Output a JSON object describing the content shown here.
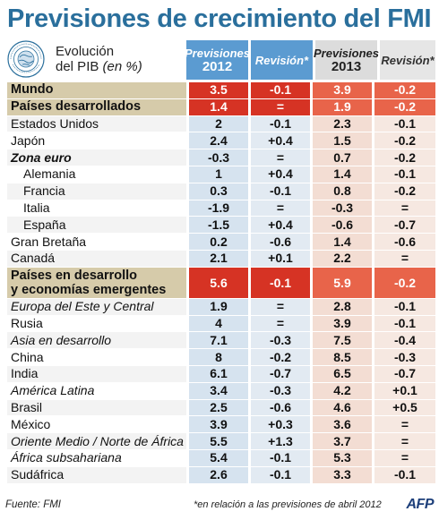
{
  "title": "Previsiones de crecimiento del FMI",
  "subtitle_line1": "Evolución",
  "subtitle_line2": "del PIB",
  "subtitle_unit": "(en %)",
  "logo_text": "INTERNATIONAL MONETARY FUND",
  "columns": {
    "prev2012_top": "Previsiones",
    "prev2012_year": "2012",
    "rev1": "Revisión*",
    "prev2013_top": "Previsiones",
    "prev2013_year": "2013",
    "rev2": "Revisión*"
  },
  "rows": [
    {
      "label": "Mundo",
      "p2012": "3.5",
      "r2012": "-0.1",
      "p2013": "3.9",
      "r2013": "-0.2"
    },
    {
      "label": "Países desarrollados",
      "p2012": "1.4",
      "r2012": "=",
      "p2013": "1.9",
      "r2013": "-0.2"
    },
    {
      "label": "Estados Unidos",
      "p2012": "2",
      "r2012": "-0.1",
      "p2013": "2.3",
      "r2013": "-0.1"
    },
    {
      "label": "Japón",
      "p2012": "2.4",
      "r2012": "+0.4",
      "p2013": "1.5",
      "r2013": "-0.2"
    },
    {
      "label": "Zona euro",
      "p2012": "-0.3",
      "r2012": "=",
      "p2013": "0.7",
      "r2013": "-0.2"
    },
    {
      "label": "Alemania",
      "p2012": "1",
      "r2012": "+0.4",
      "p2013": "1.4",
      "r2013": "-0.1"
    },
    {
      "label": "Francia",
      "p2012": "0.3",
      "r2012": "-0.1",
      "p2013": "0.8",
      "r2013": "-0.2"
    },
    {
      "label": "Italia",
      "p2012": "-1.9",
      "r2012": "=",
      "p2013": "-0.3",
      "r2013": "="
    },
    {
      "label": "España",
      "p2012": "-1.5",
      "r2012": "+0.4",
      "p2013": "-0.6",
      "r2013": "-0.7"
    },
    {
      "label": "Gran Bretaña",
      "p2012": "0.2",
      "r2012": "-0.6",
      "p2013": "1.4",
      "r2013": "-0.6"
    },
    {
      "label": "Canadá",
      "p2012": "2.1",
      "r2012": "+0.1",
      "p2013": "2.2",
      "r2013": "="
    },
    {
      "label1": "Países en desarrollo",
      "label2": "y economías emergentes",
      "p2012": "5.6",
      "r2012": "-0.1",
      "p2013": "5.9",
      "r2013": "-0.2"
    },
    {
      "label": "Europa del Este y Central",
      "p2012": "1.9",
      "r2012": "=",
      "p2013": "2.8",
      "r2013": "-0.1"
    },
    {
      "label": "Rusia",
      "p2012": "4",
      "r2012": "=",
      "p2013": "3.9",
      "r2013": "-0.1"
    },
    {
      "label": "Asia en desarrollo",
      "p2012": "7.1",
      "r2012": "-0.3",
      "p2013": "7.5",
      "r2013": "-0.4"
    },
    {
      "label": "China",
      "p2012": "8",
      "r2012": "-0.2",
      "p2013": "8.5",
      "r2013": "-0.3"
    },
    {
      "label": "India",
      "p2012": "6.1",
      "r2012": "-0.7",
      "p2013": "6.5",
      "r2013": "-0.7"
    },
    {
      "label": "América Latina",
      "p2012": "3.4",
      "r2012": "-0.3",
      "p2013": "4.2",
      "r2013": "+0.1"
    },
    {
      "label": "Brasil",
      "p2012": "2.5",
      "r2012": "-0.6",
      "p2013": "4.6",
      "r2013": "+0.5"
    },
    {
      "label": "México",
      "p2012": "3.9",
      "r2012": "+0.3",
      "p2013": "3.6",
      "r2013": "="
    },
    {
      "label": "Oriente Medio / Norte de África",
      "p2012": "5.5",
      "r2012": "+1.3",
      "p2013": "3.7",
      "r2013": "="
    },
    {
      "label": "África subsahariana",
      "p2012": "5.4",
      "r2012": "-0.1",
      "p2013": "5.3",
      "r2013": "="
    },
    {
      "label": "Sudáfrica",
      "p2012": "2.6",
      "r2012": "-0.1",
      "p2013": "3.3",
      "r2013": "-0.1"
    }
  ],
  "footer": {
    "source": "Fuente: FMI",
    "note": "*en relación a las previsiones de abril 2012",
    "credit": "AFP"
  },
  "colors": {
    "title": "#2a6f9c",
    "header_blue": "#5b9bd1",
    "highlight_red": "#d63324",
    "highlight_orange": "#e8644a",
    "highlight_label": "#d6cbaa"
  },
  "chart_data": {
    "type": "table",
    "title": "Previsiones de crecimiento del FMI",
    "subtitle": "Evolución del PIB (en %)",
    "columns": [
      "Previsiones 2012",
      "Revisión*",
      "Previsiones 2013",
      "Revisión*"
    ],
    "rows": [
      [
        "Mundo",
        3.5,
        "-0.1",
        3.9,
        "-0.2"
      ],
      [
        "Países desarrollados",
        1.4,
        "=",
        1.9,
        "-0.2"
      ],
      [
        "Estados Unidos",
        2,
        "-0.1",
        2.3,
        "-0.1"
      ],
      [
        "Japón",
        2.4,
        "+0.4",
        1.5,
        "-0.2"
      ],
      [
        "Zona euro",
        -0.3,
        "=",
        0.7,
        "-0.2"
      ],
      [
        "Alemania",
        1,
        "+0.4",
        1.4,
        "-0.1"
      ],
      [
        "Francia",
        0.3,
        "-0.1",
        0.8,
        "-0.2"
      ],
      [
        "Italia",
        -1.9,
        "=",
        -0.3,
        "="
      ],
      [
        "España",
        -1.5,
        "+0.4",
        -0.6,
        "-0.7"
      ],
      [
        "Gran Bretaña",
        0.2,
        "-0.6",
        1.4,
        "-0.6"
      ],
      [
        "Canadá",
        2.1,
        "+0.1",
        2.2,
        "="
      ],
      [
        "Países en desarrollo y economías emergentes",
        5.6,
        "-0.1",
        5.9,
        "-0.2"
      ],
      [
        "Europa del Este y Central",
        1.9,
        "=",
        2.8,
        "-0.1"
      ],
      [
        "Rusia",
        4,
        "=",
        3.9,
        "-0.1"
      ],
      [
        "Asia en desarrollo",
        7.1,
        "-0.3",
        7.5,
        "-0.4"
      ],
      [
        "China",
        8,
        "-0.2",
        8.5,
        "-0.3"
      ],
      [
        "India",
        6.1,
        "-0.7",
        6.5,
        "-0.7"
      ],
      [
        "América Latina",
        3.4,
        "-0.3",
        4.2,
        "+0.1"
      ],
      [
        "Brasil",
        2.5,
        "-0.6",
        4.6,
        "+0.5"
      ],
      [
        "México",
        3.9,
        "+0.3",
        3.6,
        "="
      ],
      [
        "Oriente Medio / Norte de África",
        5.5,
        "+1.3",
        3.7,
        "="
      ],
      [
        "África subsahariana",
        5.4,
        "-0.1",
        5.3,
        "="
      ],
      [
        "Sudáfrica",
        2.6,
        "-0.1",
        3.3,
        "-0.1"
      ]
    ]
  }
}
